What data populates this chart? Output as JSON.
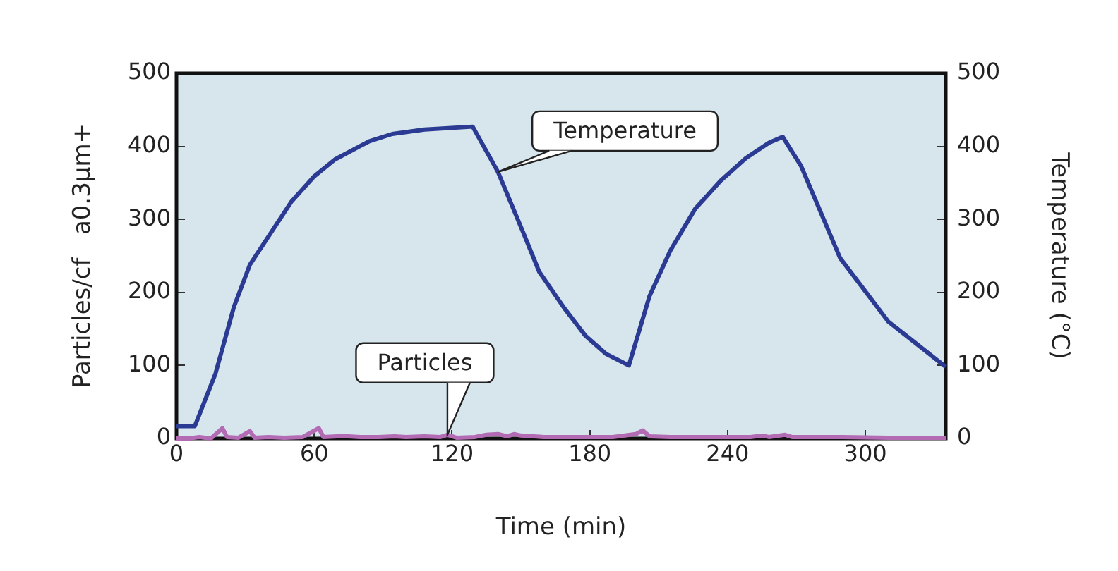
{
  "chart_data": {
    "type": "line",
    "xlabel": "Time (min)",
    "ylabel": "Particles/cf   a0.3µm+",
    "y2label": "Temperature (°C)",
    "xlim": [
      0,
      335
    ],
    "xticks": [
      0,
      60,
      120,
      180,
      240,
      300
    ],
    "ylim": [
      0,
      500
    ],
    "yticks": [
      0,
      100,
      200,
      300,
      400,
      500
    ],
    "y2lim": [
      0,
      500
    ],
    "y2ticks": [
      0,
      100,
      200,
      300,
      400,
      500
    ],
    "grid": false,
    "legend": false,
    "marker": "none",
    "line_style": "solid",
    "series": [
      {
        "name": "Particles",
        "color": "#b36bb3",
        "x": [
          0,
          5,
          10,
          15,
          20,
          22,
          27,
          32,
          34,
          40,
          47,
          55,
          62,
          64,
          70,
          75,
          80,
          88,
          95,
          100,
          108,
          115,
          118,
          122,
          130,
          135,
          140,
          144,
          147,
          150,
          160,
          175,
          190,
          200,
          203,
          206,
          215,
          230,
          250,
          255,
          258,
          265,
          268,
          275,
          290,
          310,
          335
        ],
        "values": [
          0,
          0,
          2,
          0,
          14,
          2,
          1,
          10,
          1,
          2,
          1,
          2,
          14,
          2,
          3,
          3,
          2,
          2,
          3,
          2,
          3,
          2,
          5,
          1,
          2,
          5,
          6,
          3,
          6,
          4,
          2,
          2,
          2,
          6,
          11,
          3,
          2,
          2,
          2,
          4,
          2,
          5,
          2,
          2,
          2,
          1,
          1
        ]
      },
      {
        "name": "Temperature",
        "color": "#2b3a93",
        "axis": "y2",
        "x": [
          0,
          8,
          17,
          25,
          32,
          50,
          60,
          69,
          84,
          94,
          108,
          129,
          140,
          151,
          158,
          169,
          178,
          187,
          197,
          206,
          215,
          226,
          237,
          248,
          258,
          264,
          272,
          289,
          310,
          335
        ],
        "values": [
          17,
          17,
          89,
          180,
          238,
          324,
          359,
          382,
          407,
          417,
          423,
          427,
          365,
          282,
          228,
          178,
          141,
          116,
          100,
          195,
          257,
          315,
          353,
          384,
          405,
          413,
          373,
          247,
          160,
          98
        ]
      }
    ]
  }
}
